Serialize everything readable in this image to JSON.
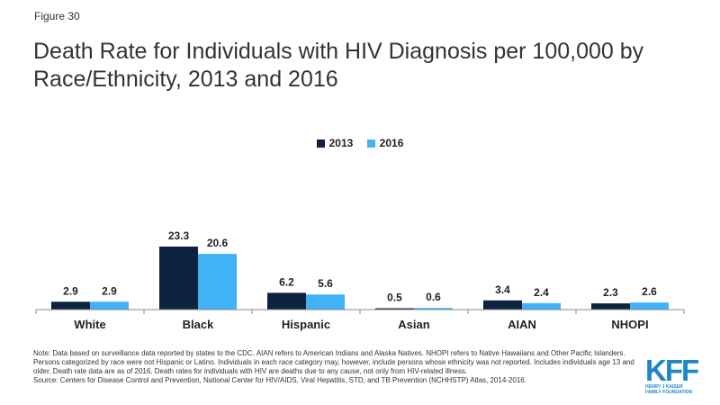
{
  "header": {
    "figure_label": "Figure 30",
    "title": "Death Rate for Individuals with HIV Diagnosis per 100,000 by Race/Ethnicity, 2013 and 2016"
  },
  "chart_data": {
    "type": "bar",
    "title": "",
    "categories": [
      "White",
      "Black",
      "Hispanic",
      "Asian",
      "AIAN",
      "NHOPI"
    ],
    "series": [
      {
        "name": "2013",
        "color": "#0d2240",
        "values": [
          2.9,
          23.3,
          6.2,
          0.5,
          3.4,
          2.3
        ]
      },
      {
        "name": "2016",
        "color": "#3fb3f5",
        "values": [
          2.9,
          20.6,
          5.6,
          0.6,
          2.4,
          2.6
        ]
      }
    ],
    "ylim": [
      0,
      23.3
    ],
    "legend_position": "top-center",
    "grid": false
  },
  "footer": {
    "note": "Note: Data based on surveillance data reported by states to the CDC. AIAN refers to American Indians and Alaska Natives. NHOPI refers to Native Hawaiians and Other Pacific Islanders. Persons categorized by race were not Hispanic or Latino. Individuals in each race category may, however, include persons whose ethnicity was not reported. Includes individuals age 13 and older. Death rate data are as of 2016. Death rates for individuals with HIV are deaths due to any cause, not only from HIV-related illness.",
    "source": "Source: Centers for Disease Control and Prevention, National Center for HIV/AIDS, Viral Hepatitis, STD, and TB Prevention (NCHHSTP) Atlas, 2014-2016."
  },
  "logo": {
    "mark": "KFF",
    "line1": "HENRY J KAISER",
    "line2": "FAMILY FOUNDATION",
    "color": "#1c87c9"
  }
}
